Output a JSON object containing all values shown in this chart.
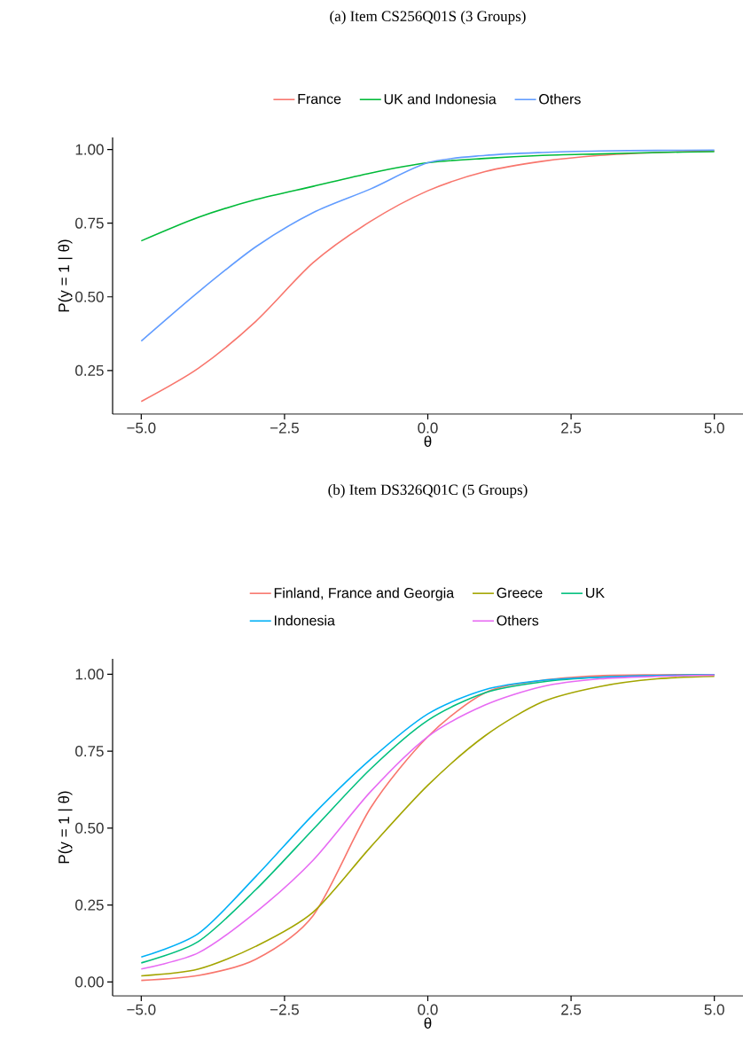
{
  "chart_data": [
    {
      "type": "line",
      "title": "(a) Item CS256Q01S (3 Groups)",
      "xlabel": "θ",
      "ylabel": "P(y = 1 | θ)",
      "legend": "top",
      "grid": false,
      "marker": "none",
      "line_style": "solid",
      "xlim": [
        -5.5,
        5.5
      ],
      "ylim": [
        0.102,
        1.041
      ],
      "xticks": [
        {
          "value": -5,
          "label": "−5.0"
        },
        {
          "value": -2.5,
          "label": "−2.5"
        },
        {
          "value": 0,
          "label": "0.0"
        },
        {
          "value": 2.5,
          "label": "2.5"
        },
        {
          "value": 5,
          "label": "5.0"
        }
      ],
      "yticks": [
        {
          "value": 0.25,
          "label": "0.25"
        },
        {
          "value": 0.5,
          "label": "0.50"
        },
        {
          "value": 0.75,
          "label": "0.75"
        },
        {
          "value": 1,
          "label": "1.00"
        }
      ],
      "x": [
        -5,
        -4,
        -3,
        -2,
        -1,
        0,
        1,
        2,
        3,
        4,
        5
      ],
      "series": [
        {
          "name": "France",
          "color": "#F8766D",
          "values": [
            0.145,
            0.258,
            0.417,
            0.616,
            0.756,
            0.86,
            0.925,
            0.96,
            0.98,
            0.99,
            0.995
          ]
        },
        {
          "name": "UK and Indonesia",
          "color": "#00BA38",
          "values": [
            0.69,
            0.77,
            0.83,
            0.875,
            0.92,
            0.955,
            0.97,
            0.98,
            0.985,
            0.99,
            0.993
          ]
        },
        {
          "name": "Others",
          "color": "#619CFF",
          "values": [
            0.35,
            0.517,
            0.67,
            0.786,
            0.866,
            0.955,
            0.98,
            0.99,
            0.995,
            0.997,
            0.998
          ]
        }
      ]
    },
    {
      "type": "line",
      "title": "(b) Item DS326Q01C (5 Groups)",
      "xlabel": "θ",
      "ylabel": "P(y = 1 | θ)",
      "legend": "top",
      "grid": false,
      "marker": "none",
      "line_style": "solid",
      "xlim": [
        -5.5,
        5.5
      ],
      "ylim": [
        -0.045,
        1.05
      ],
      "xticks": [
        {
          "value": -5,
          "label": "−5.0"
        },
        {
          "value": -2.5,
          "label": "−2.5"
        },
        {
          "value": 0,
          "label": "0.0"
        },
        {
          "value": 2.5,
          "label": "2.5"
        },
        {
          "value": 5,
          "label": "5.0"
        }
      ],
      "yticks": [
        {
          "value": 0,
          "label": "0.00"
        },
        {
          "value": 0.25,
          "label": "0.25"
        },
        {
          "value": 0.5,
          "label": "0.50"
        },
        {
          "value": 0.75,
          "label": "0.75"
        },
        {
          "value": 1,
          "label": "1.00"
        }
      ],
      "x": [
        -5,
        -4,
        -3,
        -2,
        -1,
        0,
        1,
        2,
        3,
        4,
        5
      ],
      "series": [
        {
          "name": "Finland, France and Georgia",
          "color": "#F8766D",
          "values": [
            0.005,
            0.021,
            0.074,
            0.216,
            0.565,
            0.797,
            0.94,
            0.98,
            0.995,
            0.998,
            0.999
          ]
        },
        {
          "name": "Greece",
          "color": "#A3A500",
          "values": [
            0.02,
            0.042,
            0.116,
            0.227,
            0.438,
            0.639,
            0.8,
            0.91,
            0.96,
            0.985,
            0.993
          ]
        },
        {
          "name": "UK",
          "color": "#00BF7D",
          "values": [
            0.062,
            0.132,
            0.3,
            0.496,
            0.692,
            0.85,
            0.94,
            0.975,
            0.99,
            0.995,
            0.998
          ]
        },
        {
          "name": "Indonesia",
          "color": "#00B0F6",
          "values": [
            0.081,
            0.158,
            0.343,
            0.544,
            0.723,
            0.871,
            0.95,
            0.98,
            0.99,
            0.996,
            0.998
          ]
        },
        {
          "name": "Others",
          "color": "#E76BF3",
          "values": [
            0.042,
            0.095,
            0.227,
            0.396,
            0.618,
            0.797,
            0.9,
            0.96,
            0.985,
            0.993,
            0.997
          ]
        }
      ]
    }
  ]
}
